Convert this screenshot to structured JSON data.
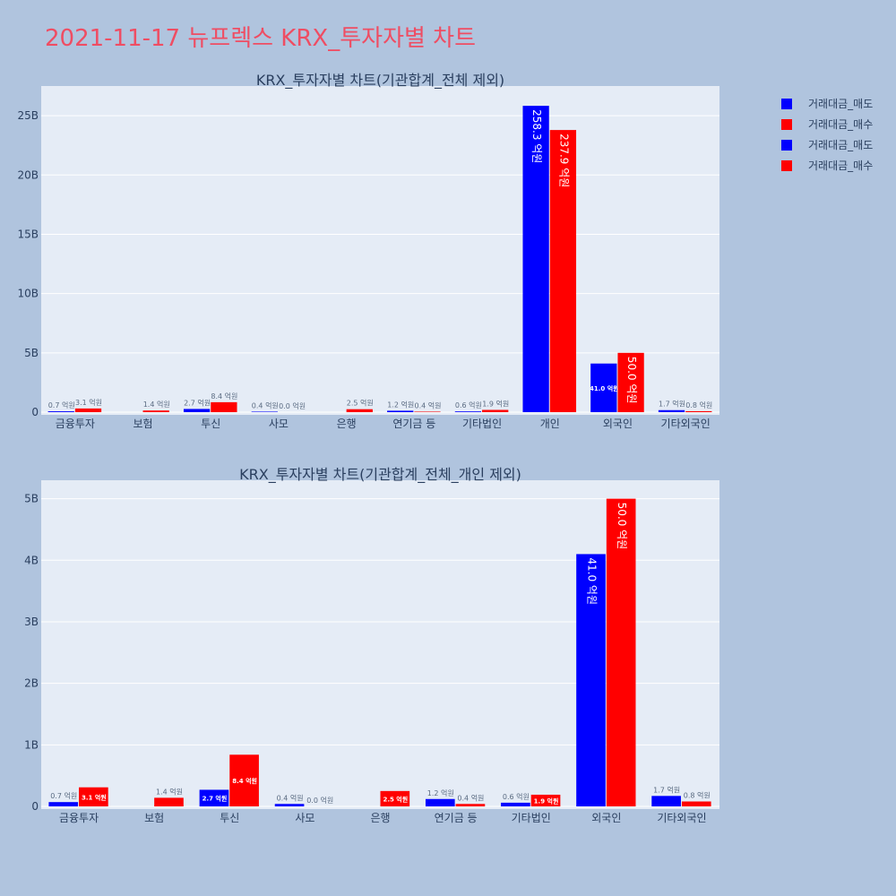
{
  "title": "2021-11-17 뉴프렉스 KRX_투자자별 차트",
  "legend": [
    {
      "label": "거래대금_매도",
      "color": "#0000ff"
    },
    {
      "label": "거래대금_매수",
      "color": "#ff0000"
    },
    {
      "label": "거래대금_매도",
      "color": "#0000ff"
    },
    {
      "label": "거래대금_매수",
      "color": "#ff0000"
    }
  ],
  "colors": {
    "sell": "#0000ff",
    "buy": "#ff0000",
    "plot_bg": "#e5ecf6",
    "page_bg": "#b0c4de",
    "title": "#ef4d63"
  },
  "chart_data": [
    {
      "type": "bar",
      "title": "KRX_투자자별 차트(기관합계_전체 제외)",
      "categories": [
        "금융투자",
        "보험",
        "투신",
        "사모",
        "은행",
        "연기금 등",
        "기타법인",
        "개인",
        "외국인",
        "기타외국인"
      ],
      "series": [
        {
          "name": "거래대금_매도",
          "values": [
            0.07,
            0,
            0.27,
            0.04,
            0,
            0.12,
            0.06,
            25.83,
            4.1,
            0.17
          ],
          "labels": [
            "0.7 억원",
            "",
            "2.7 억원",
            "0.4 억원",
            "",
            "1.2 억원",
            "0.6 억원",
            "258.3 억원",
            "41.0 억원",
            "1.7 억원"
          ]
        },
        {
          "name": "거래대금_매수",
          "values": [
            0.31,
            0.14,
            0.84,
            0.0,
            0.25,
            0.04,
            0.19,
            23.79,
            5.0,
            0.08
          ],
          "labels": [
            "3.1 억원",
            "1.4 억원",
            "8.4 억원",
            "0.0 억원",
            "2.5 억원",
            "0.4 억원",
            "1.9 억원",
            "237.9 억원",
            "50.0 억원",
            "0.8 억원"
          ]
        }
      ],
      "ylim": [
        0,
        27.5
      ],
      "yticks": [
        0,
        5,
        10,
        15,
        20,
        25
      ],
      "ytick_labels": [
        "0",
        "5B",
        "10B",
        "15B",
        "20B",
        "25B"
      ],
      "grid": true
    },
    {
      "type": "bar",
      "title": "KRX_투자자별 차트(기관합계_전체_개인 제외)",
      "categories": [
        "금융투자",
        "보험",
        "투신",
        "사모",
        "은행",
        "연기금 등",
        "기타법인",
        "외국인",
        "기타외국인"
      ],
      "series": [
        {
          "name": "거래대금_매도",
          "values": [
            0.07,
            0,
            0.27,
            0.04,
            0,
            0.12,
            0.06,
            4.1,
            0.17
          ],
          "labels": [
            "0.7 억원",
            "",
            "2.7 억원",
            "0.4 억원",
            "",
            "1.2 억원",
            "0.6 억원",
            "41.0 억원",
            "1.7 억원"
          ]
        },
        {
          "name": "거래대금_매수",
          "values": [
            0.31,
            0.14,
            0.84,
            0.0,
            0.25,
            0.04,
            0.19,
            5.0,
            0.08
          ],
          "labels": [
            "3.1 억원",
            "1.4 억원",
            "8.4 억원",
            "0.0 억원",
            "2.5 억원",
            "0.4 억원",
            "1.9 억원",
            "50.0 억원",
            "0.8 억원"
          ]
        }
      ],
      "ylim": [
        0,
        5.3
      ],
      "yticks": [
        0,
        1,
        2,
        3,
        4,
        5
      ],
      "ytick_labels": [
        "0",
        "1B",
        "2B",
        "3B",
        "4B",
        "5B"
      ],
      "grid": true
    }
  ]
}
